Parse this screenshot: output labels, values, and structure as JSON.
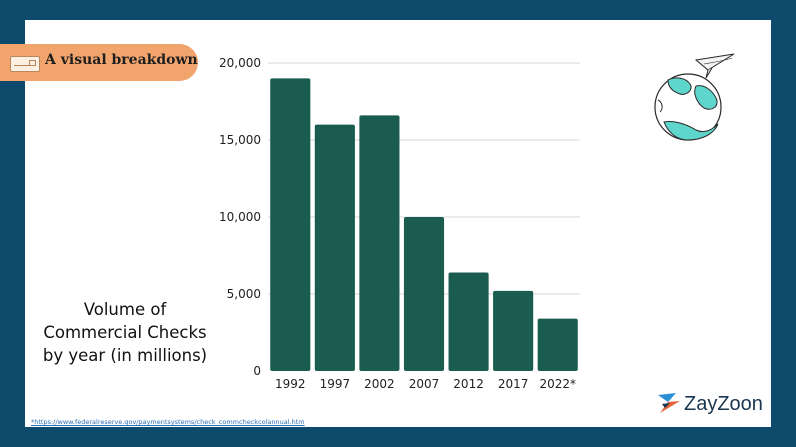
{
  "badge": {
    "label": "A visual breakdown",
    "icon": "check-card-icon"
  },
  "caption": {
    "line1": "Volume of",
    "line2": "Commercial Checks",
    "line3": "by year (in millions)"
  },
  "footnote": "*https://www.federalreserve.gov/paymentsystems/check_commcheckcolannual.htm",
  "brand": {
    "name": "ZayZoon",
    "icon": "zayzoon-logo-icon"
  },
  "illustration": {
    "icon": "globe-paper-plane-icon"
  },
  "colors": {
    "frame": "#0d4a6b",
    "bar": "#1b5c50",
    "badge": "#f2a46d",
    "globe": "#5fd6cb"
  },
  "chart_data": {
    "type": "bar",
    "categories": [
      "1992",
      "1997",
      "2002",
      "2007",
      "2012",
      "2017",
      "2022*"
    ],
    "values": [
      19000,
      16000,
      16600,
      10000,
      6400,
      5200,
      3400
    ],
    "yticks": [
      "0",
      "5,000",
      "10,000",
      "15,000",
      "20,000"
    ],
    "ytick_values": [
      0,
      5000,
      10000,
      15000,
      20000
    ],
    "ylim": [
      0,
      20000
    ],
    "grid": true,
    "title": "",
    "xlabel": "",
    "ylabel": ""
  }
}
